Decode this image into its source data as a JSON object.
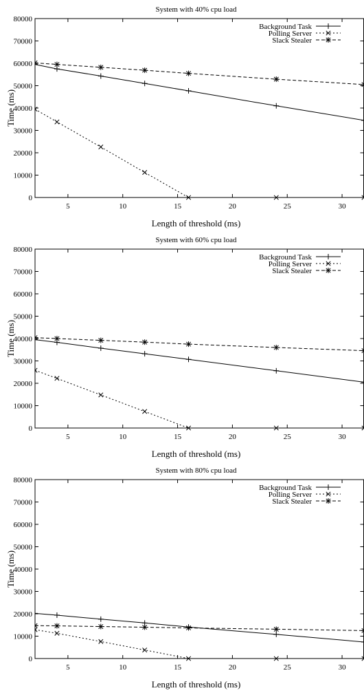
{
  "chart_data": [
    {
      "type": "line",
      "title": "System with 40% cpu load",
      "xlabel": "Length of threshold (ms)",
      "ylabel": "Time (ms)",
      "xlim": [
        2,
        32
      ],
      "ylim": [
        0,
        80000
      ],
      "xticks": [
        5,
        10,
        15,
        20,
        25,
        30
      ],
      "yticks": [
        0,
        10000,
        20000,
        30000,
        40000,
        50000,
        60000,
        70000,
        80000
      ],
      "grid": false,
      "legend_position": "top-right",
      "series": [
        {
          "name": "Background Task",
          "marker": "plus",
          "dash": "solid",
          "points": [
            [
              2,
              59500
            ],
            [
              4,
              57500
            ],
            [
              8,
              54300
            ],
            [
              12,
              51000
            ],
            [
              16,
              47700
            ],
            [
              24,
              41000
            ],
            [
              32,
              34500
            ]
          ]
        },
        {
          "name": "Polling Server",
          "marker": "cross",
          "dash": "dotted",
          "points": [
            [
              2,
              39500
            ],
            [
              4,
              33800
            ],
            [
              8,
              22600
            ],
            [
              12,
              11200
            ],
            [
              16,
              0
            ],
            [
              24,
              0
            ],
            [
              32,
              0
            ]
          ]
        },
        {
          "name": "Slack Stealer",
          "marker": "star",
          "dash": "dashed",
          "points": [
            [
              2,
              60200
            ],
            [
              4,
              59500
            ],
            [
              8,
              58200
            ],
            [
              12,
              56900
            ],
            [
              16,
              55500
            ],
            [
              24,
              52900
            ],
            [
              32,
              50500
            ]
          ]
        }
      ]
    },
    {
      "type": "line",
      "title": "System with 60% cpu load",
      "xlabel": "Length of threshold (ms)",
      "ylabel": "Time (ms)",
      "xlim": [
        2,
        32
      ],
      "ylim": [
        0,
        80000
      ],
      "xticks": [
        5,
        10,
        15,
        20,
        25,
        30
      ],
      "yticks": [
        0,
        10000,
        20000,
        30000,
        40000,
        50000,
        60000,
        70000,
        80000
      ],
      "grid": false,
      "legend_position": "top-right",
      "series": [
        {
          "name": "Background Task",
          "marker": "plus",
          "dash": "solid",
          "points": [
            [
              2,
              39500
            ],
            [
              4,
              38300
            ],
            [
              8,
              35700
            ],
            [
              12,
              33200
            ],
            [
              16,
              30700
            ],
            [
              24,
              25600
            ],
            [
              32,
              20500
            ]
          ]
        },
        {
          "name": "Polling Server",
          "marker": "cross",
          "dash": "dotted",
          "points": [
            [
              2,
              25800
            ],
            [
              4,
              22200
            ],
            [
              8,
              14800
            ],
            [
              12,
              7400
            ],
            [
              16,
              0
            ],
            [
              24,
              0
            ],
            [
              32,
              0
            ]
          ]
        },
        {
          "name": "Slack Stealer",
          "marker": "star",
          "dash": "dashed",
          "points": [
            [
              2,
              40400
            ],
            [
              4,
              40000
            ],
            [
              8,
              39200
            ],
            [
              12,
              38400
            ],
            [
              16,
              37500
            ],
            [
              24,
              36000
            ],
            [
              32,
              34600
            ]
          ]
        }
      ]
    },
    {
      "type": "line",
      "title": "System with 80% cpu load",
      "xlabel": "Length of threshold (ms)",
      "ylabel": "Time (ms)",
      "xlim": [
        2,
        32
      ],
      "ylim": [
        0,
        80000
      ],
      "xticks": [
        5,
        10,
        15,
        20,
        25,
        30
      ],
      "yticks": [
        0,
        10000,
        20000,
        30000,
        40000,
        50000,
        60000,
        70000,
        80000
      ],
      "grid": false,
      "legend_position": "top-right",
      "series": [
        {
          "name": "Background Task",
          "marker": "plus",
          "dash": "solid",
          "points": [
            [
              2,
              20200
            ],
            [
              4,
              19400
            ],
            [
              8,
              17600
            ],
            [
              12,
              15900
            ],
            [
              16,
              14100
            ],
            [
              24,
              10800
            ],
            [
              32,
              7400
            ]
          ]
        },
        {
          "name": "Polling Server",
          "marker": "cross",
          "dash": "dotted",
          "points": [
            [
              2,
              12900
            ],
            [
              4,
              11300
            ],
            [
              8,
              7600
            ],
            [
              12,
              3800
            ],
            [
              16,
              0
            ],
            [
              24,
              0
            ],
            [
              32,
              0
            ]
          ]
        },
        {
          "name": "Slack Stealer",
          "marker": "star",
          "dash": "dashed",
          "points": [
            [
              2,
              14700
            ],
            [
              4,
              14600
            ],
            [
              8,
              14300
            ],
            [
              12,
              14000
            ],
            [
              16,
              13700
            ],
            [
              24,
              13100
            ],
            [
              32,
              12500
            ]
          ]
        }
      ]
    }
  ]
}
